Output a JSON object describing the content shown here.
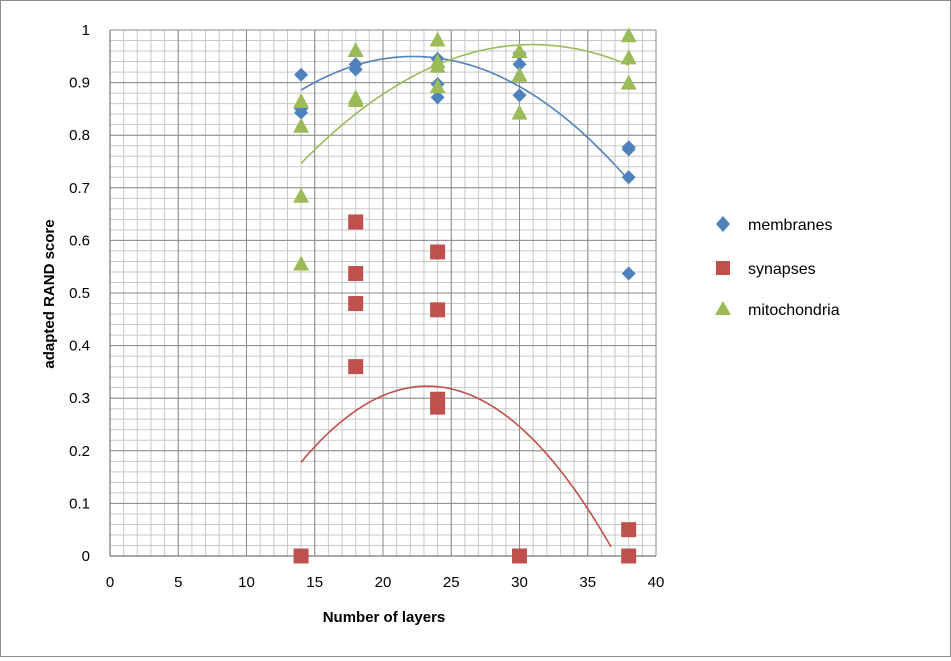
{
  "chart_data": {
    "type": "scatter",
    "xlabel": "Number of layers",
    "ylabel": "adapted RAND score",
    "xlim": [
      0,
      40
    ],
    "ylim": [
      0,
      1
    ],
    "x_ticks": [
      "0",
      "5",
      "10",
      "15",
      "20",
      "25",
      "30",
      "35",
      "40"
    ],
    "y_ticks": [
      "0",
      "0.1",
      "0.2",
      "0.3",
      "0.4",
      "0.5",
      "0.6",
      "0.7",
      "0.8",
      "0.9",
      "1"
    ],
    "x_tick_values": [
      0,
      5,
      10,
      15,
      20,
      25,
      30,
      35,
      40
    ],
    "y_tick_values": [
      0,
      0.1,
      0.2,
      0.3,
      0.4,
      0.5,
      0.6,
      0.7,
      0.8,
      0.9,
      1
    ],
    "grid": true,
    "legend_position": "right",
    "series": [
      {
        "name": "membranes",
        "marker": "diamond",
        "color": "#4f81bd",
        "points": [
          [
            14,
            0.915
          ],
          [
            14,
            0.85
          ],
          [
            14,
            0.843
          ],
          [
            18,
            0.935
          ],
          [
            18,
            0.925
          ],
          [
            24,
            0.945
          ],
          [
            24,
            0.897
          ],
          [
            24,
            0.872
          ],
          [
            30,
            0.955
          ],
          [
            30,
            0.935
          ],
          [
            30,
            0.876
          ],
          [
            38,
            0.777
          ],
          [
            38,
            0.773
          ],
          [
            38,
            0.72
          ],
          [
            38,
            0.537
          ]
        ],
        "trend": {
          "type": "poly2",
          "x_range": [
            14,
            38
          ],
          "coefficients": [
            -0.000945,
            0.042,
            0.483
          ]
        }
      },
      {
        "name": "synapses",
        "marker": "square",
        "color": "#c0504d",
        "points": [
          [
            14,
            0.0
          ],
          [
            18,
            0.635
          ],
          [
            18,
            0.537
          ],
          [
            18,
            0.48
          ],
          [
            18,
            0.36
          ],
          [
            24,
            0.578
          ],
          [
            24,
            0.468
          ],
          [
            24,
            0.298
          ],
          [
            24,
            0.283
          ],
          [
            30,
            0.0
          ],
          [
            38,
            0.05
          ],
          [
            38,
            0.0
          ]
        ],
        "trend": {
          "type": "poly2",
          "x_range": [
            14,
            36.7
          ],
          "coefficients": [
            -0.00169,
            0.0786,
            -0.591
          ]
        }
      },
      {
        "name": "mitochondria",
        "marker": "triangle",
        "color": "#9bbb59",
        "points": [
          [
            14,
            0.865
          ],
          [
            14,
            0.818
          ],
          [
            14,
            0.685
          ],
          [
            14,
            0.556
          ],
          [
            18,
            0.962
          ],
          [
            18,
            0.872
          ],
          [
            18,
            0.867
          ],
          [
            24,
            0.982
          ],
          [
            24,
            0.94
          ],
          [
            24,
            0.932
          ],
          [
            24,
            0.893
          ],
          [
            30,
            0.96
          ],
          [
            30,
            0.915
          ],
          [
            30,
            0.843
          ],
          [
            38,
            0.99
          ],
          [
            38,
            0.948
          ],
          [
            38,
            0.9
          ]
        ],
        "trend": {
          "type": "poly2",
          "x_range": [
            14,
            38
          ],
          "coefficients": [
            -0.000785,
            0.0486,
            0.22
          ]
        }
      }
    ]
  }
}
